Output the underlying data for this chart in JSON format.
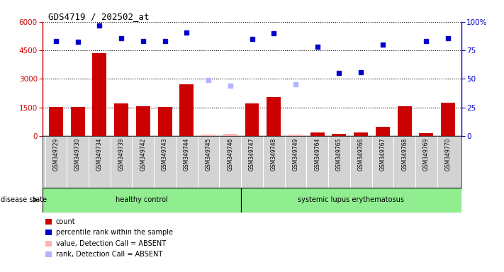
{
  "title": "GDS4719 / 202502_at",
  "samples": [
    "GSM349729",
    "GSM349730",
    "GSM349734",
    "GSM349739",
    "GSM349742",
    "GSM349743",
    "GSM349744",
    "GSM349745",
    "GSM349746",
    "GSM349747",
    "GSM349748",
    "GSM349749",
    "GSM349764",
    "GSM349765",
    "GSM349766",
    "GSM349767",
    "GSM349768",
    "GSM349769",
    "GSM349770"
  ],
  "counts": [
    1520,
    1520,
    4350,
    1700,
    1550,
    1530,
    2700,
    null,
    null,
    1700,
    2050,
    null,
    200,
    130,
    170,
    480,
    1580,
    150,
    1750
  ],
  "absent_counts": [
    null,
    null,
    null,
    null,
    null,
    null,
    null,
    80,
    100,
    null,
    null,
    80,
    null,
    null,
    null,
    null,
    null,
    null,
    null
  ],
  "percentile_ranks": [
    5000,
    4950,
    5800,
    5150,
    5000,
    5000,
    5450,
    null,
    null,
    5100,
    5400,
    null,
    4700,
    3300,
    3350,
    4800,
    null,
    5000,
    5150
  ],
  "absent_ranks": [
    null,
    null,
    null,
    null,
    null,
    null,
    null,
    2950,
    2650,
    null,
    null,
    2700,
    null,
    null,
    null,
    null,
    null,
    null,
    null
  ],
  "healthy_count": 9,
  "group_labels": [
    "healthy control",
    "systemic lupus erythematosus"
  ],
  "ylim": [
    0,
    6000
  ],
  "yticks_left": [
    0,
    1500,
    3000,
    4500,
    6000
  ],
  "yticks_right": [
    0,
    25,
    50,
    75,
    100
  ],
  "bar_color": "#cc0000",
  "absent_bar_color": "#ffb3b3",
  "dot_color": "#0000cc",
  "absent_dot_color": "#b3b3ff",
  "legend_items": [
    {
      "label": "count",
      "color": "#cc0000"
    },
    {
      "label": "percentile rank within the sample",
      "color": "#0000cc"
    },
    {
      "label": "value, Detection Call = ABSENT",
      "color": "#ffb3b3"
    },
    {
      "label": "rank, Detection Call = ABSENT",
      "color": "#b3b3ff"
    }
  ],
  "disease_state_label": "disease state",
  "bg_color": "#ffffff",
  "group_bg_color": "#90ee90",
  "label_bg_color": "#d3d3d3"
}
